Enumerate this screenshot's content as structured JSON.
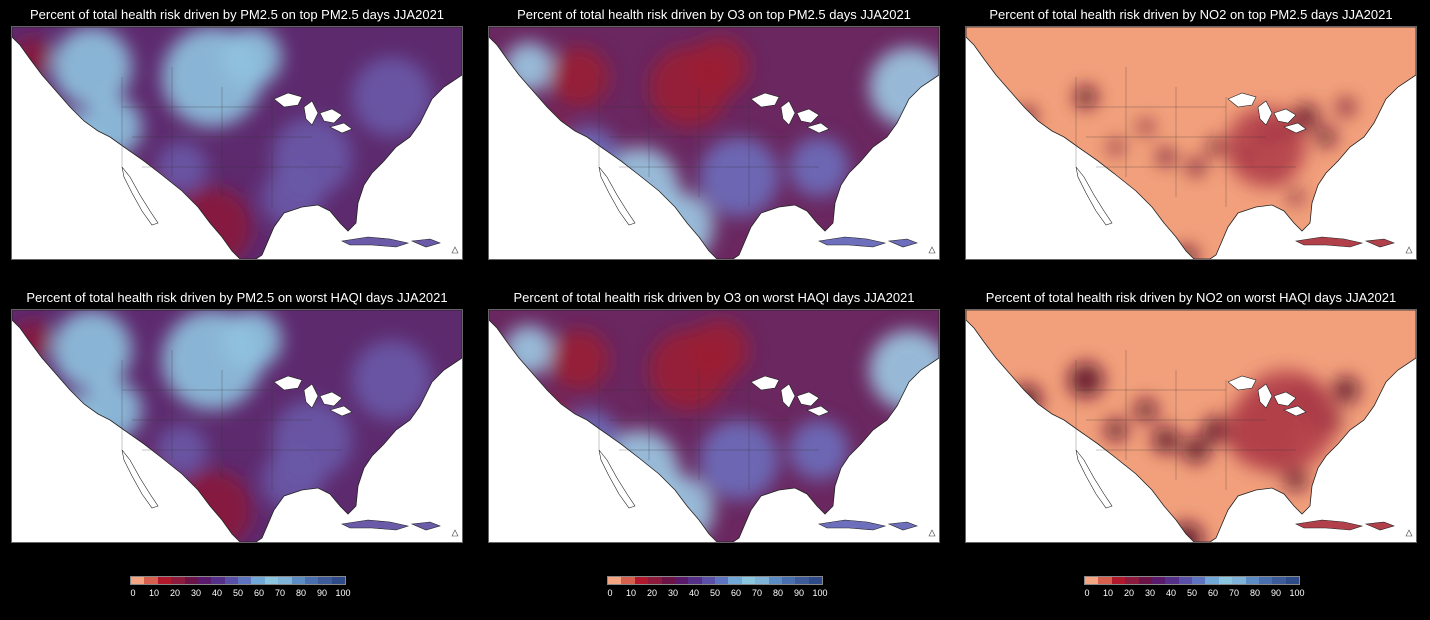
{
  "panels": [
    {
      "title": "Percent of total health risk driven by PM2.5 on top PM2.5 days JJA2021",
      "scheme": "pm"
    },
    {
      "title": "Percent of total health risk driven by O3 on top PM2.5 days JJA2021",
      "scheme": "o3"
    },
    {
      "title": "Percent of total health risk driven by NO2 on top PM2.5 days JJA2021",
      "scheme": "no2"
    },
    {
      "title": "Percent of total health risk driven by PM2.5 on worst HAQI days JJA2021",
      "scheme": "pm"
    },
    {
      "title": "Percent of total health risk driven by O3 on worst HAQI days JJA2021",
      "scheme": "o3"
    },
    {
      "title": "Percent of total health risk driven by NO2 on worst HAQI days JJA2021",
      "scheme": "no2"
    }
  ],
  "colorbar": {
    "ticks": [
      "0",
      "10",
      "20",
      "30",
      "40",
      "50",
      "60",
      "70",
      "80",
      "90",
      "100"
    ],
    "colors": [
      "#f4a582",
      "#d6604d",
      "#b2182b",
      "#8c1a3c",
      "#6b1346",
      "#5a1a6b",
      "#553088",
      "#5a50a8",
      "#5f74c0",
      "#72a8d8",
      "#8ac6e0",
      "#7fb3d8",
      "#5b8cc4",
      "#4a6fae",
      "#3d5a99",
      "#2f4a88"
    ]
  },
  "map_colors": {
    "pm": {
      "background": "#5d2a6e",
      "high": "#8fc3e0",
      "mid": "#6a5aa8",
      "low": "#8a1a3a"
    },
    "o3": {
      "background": "#6a2760",
      "high": "#9ccae4",
      "mid": "#6d6fbd",
      "low": "#9a1f34"
    },
    "no2": {
      "background": "#f2a07c",
      "high": "#5a0d2a",
      "mid": "#b2404a",
      "low": "#e07a66"
    }
  }
}
